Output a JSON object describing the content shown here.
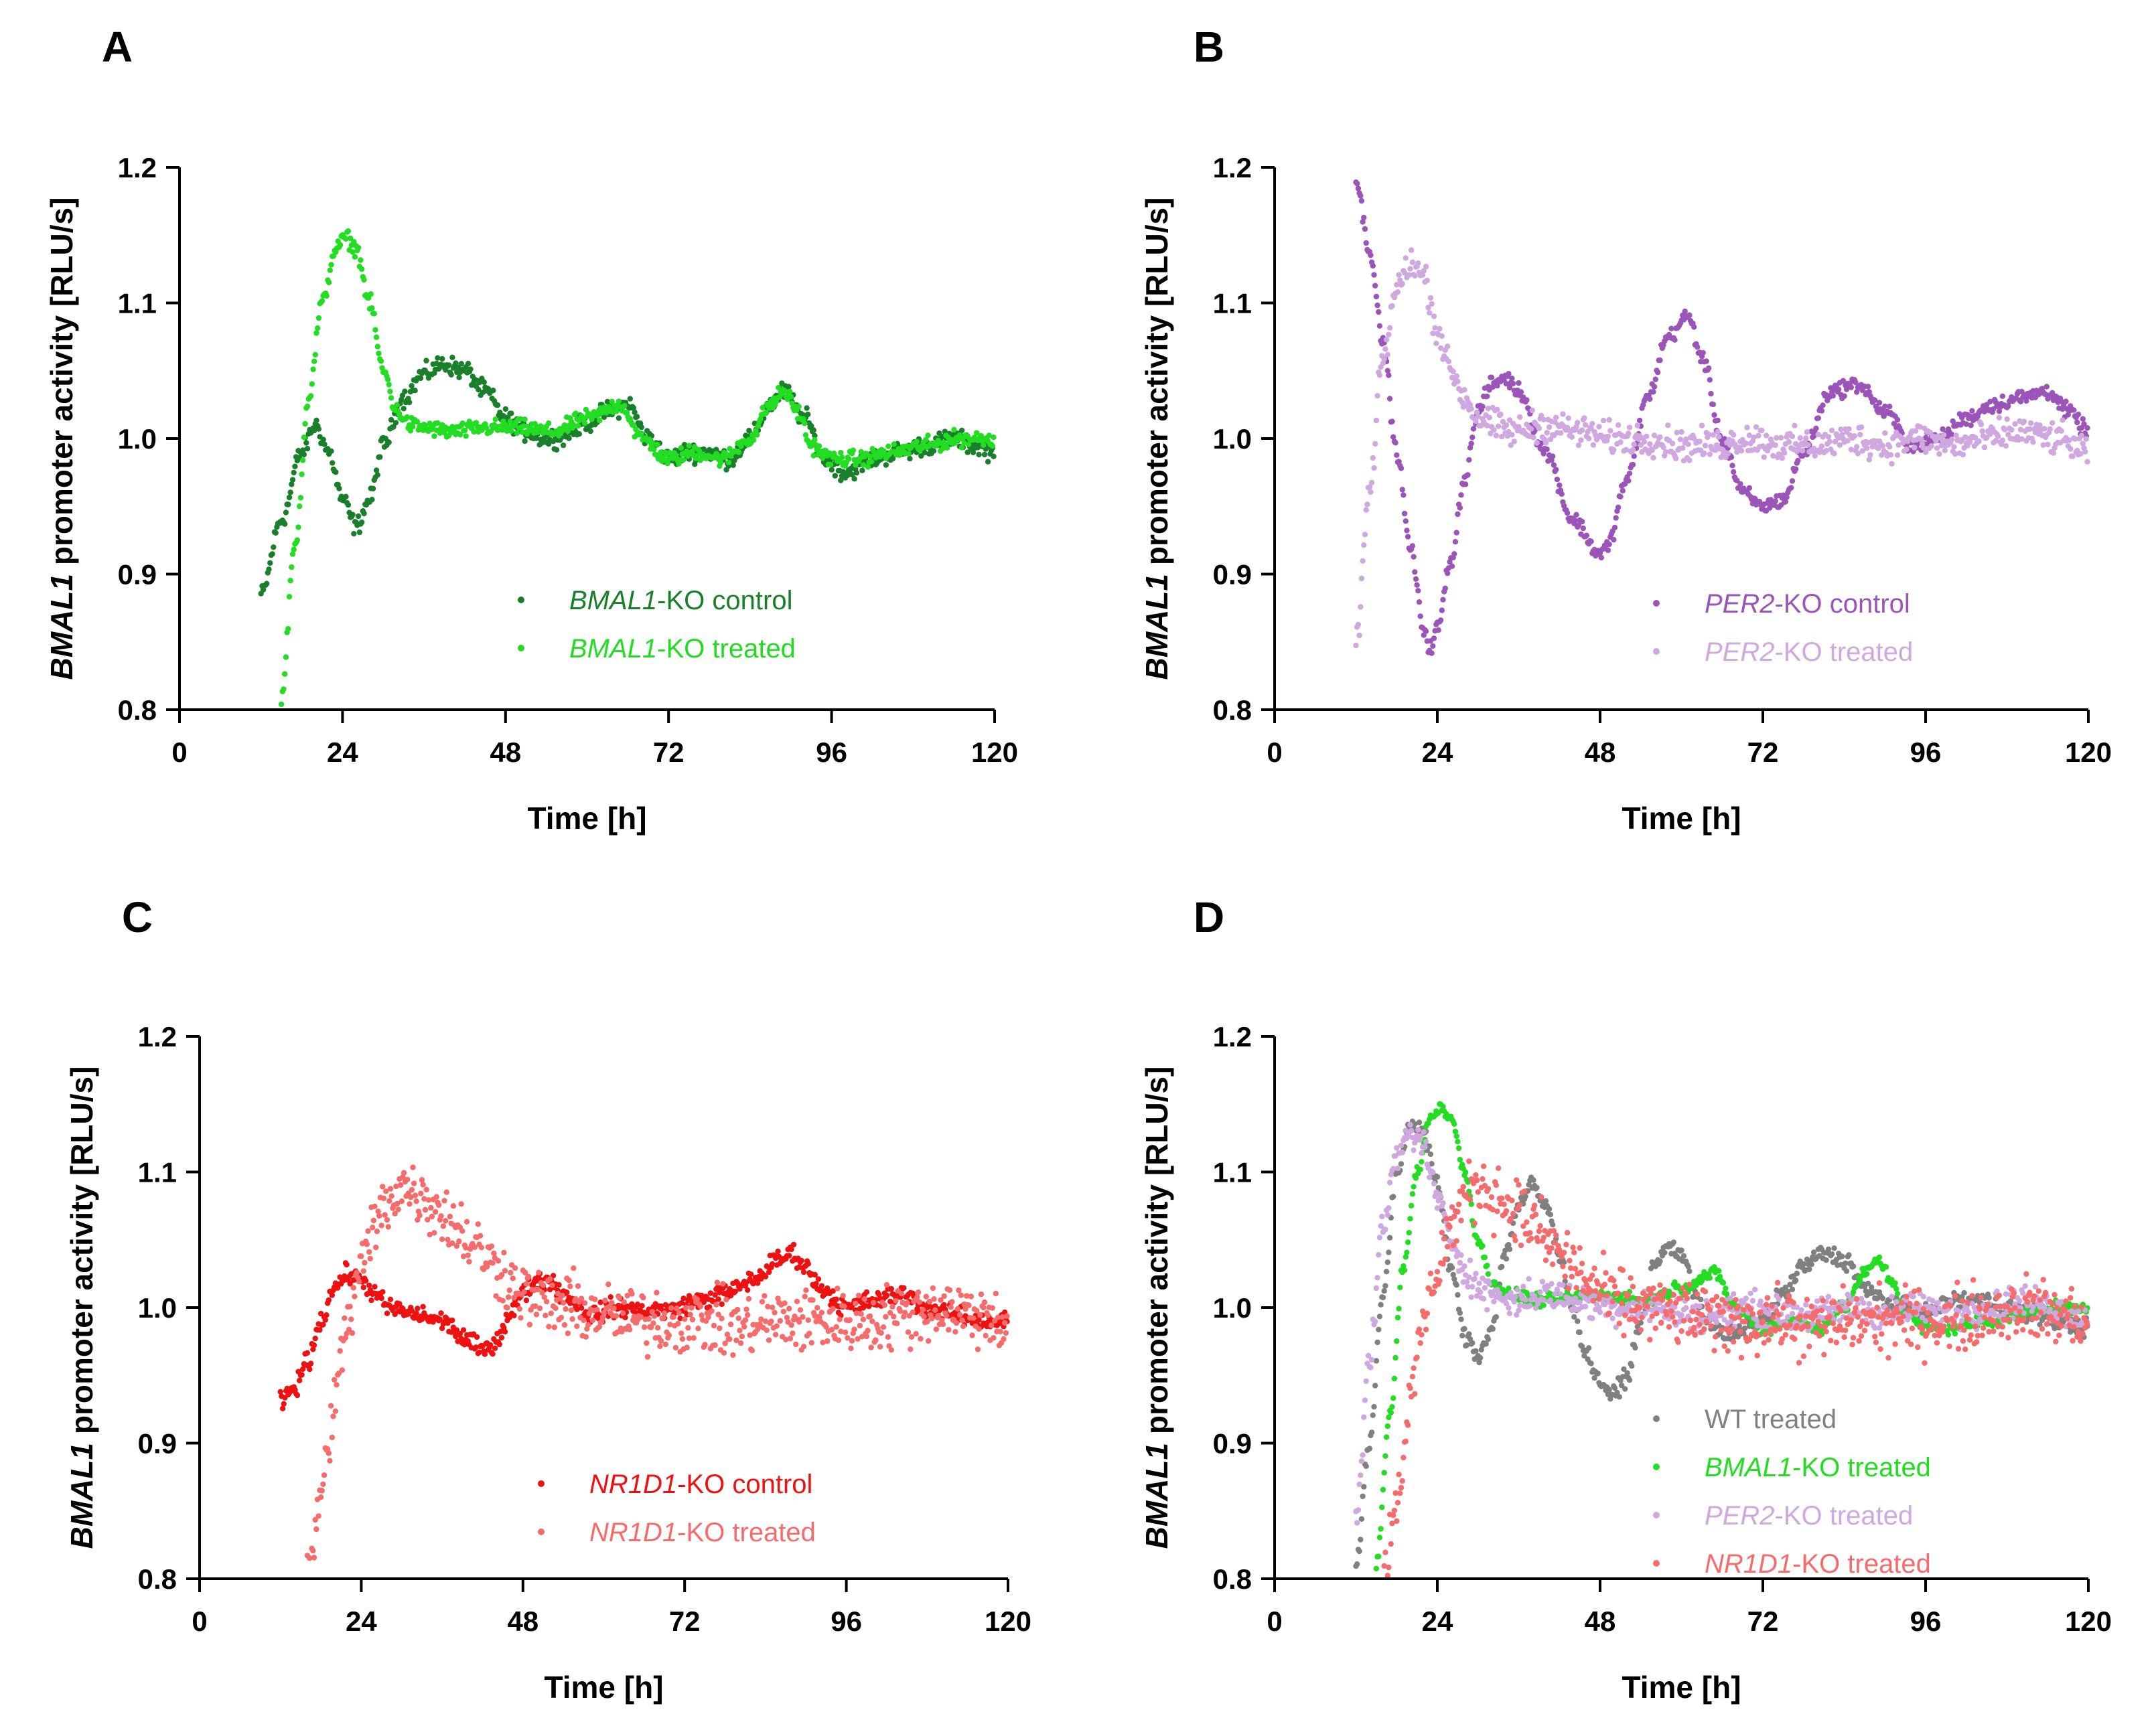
{
  "figure": {
    "ylabel_gene": "BMAL1",
    "ylabel_rest": " promoter activity [RLU/s]",
    "xlabel": "Time [h]",
    "colors": {
      "bmal1_control": "#1a7f2a",
      "bmal1_treated": "#22dd22",
      "per2_control": "#9b55b8",
      "per2_treated": "#cfa8e0",
      "nr1d1_control": "#ee1111",
      "nr1d1_treated": "#f66b6b",
      "wt_treated": "#808080"
    }
  },
  "chart_data": [
    {
      "panel": "A",
      "type": "scatter",
      "xlabel": "Time [h]",
      "ylabel": "BMAL1 promoter activity [RLU/s]",
      "xlim": [
        0,
        120
      ],
      "ylim": [
        0.8,
        1.2
      ],
      "xticks": [
        "0",
        "24",
        "48",
        "72",
        "96",
        "120"
      ],
      "yticks": [
        "0.8",
        "0.9",
        "1.0",
        "1.1",
        "1.2"
      ],
      "series": [
        {
          "name": "BMAL1-KO control",
          "gene": "BMAL1",
          "suffix": "-KO control",
          "color": "#1a7f2a",
          "noise": 0.006,
          "x": [
            12,
            15,
            18,
            20,
            22,
            24,
            26,
            28,
            30,
            33,
            36,
            39,
            42,
            45,
            48,
            51,
            54,
            57,
            60,
            63,
            66,
            69,
            72,
            75,
            78,
            81,
            84,
            87,
            89,
            92,
            95,
            98,
            102,
            106,
            110,
            114,
            117,
            120
          ],
          "y": [
            0.885,
            0.94,
            0.99,
            1.01,
            0.99,
            0.955,
            0.935,
            0.955,
            0.995,
            1.03,
            1.048,
            1.055,
            1.05,
            1.035,
            1.015,
            1.005,
            1.0,
            1.003,
            1.012,
            1.02,
            1.025,
            1.0,
            0.985,
            0.99,
            0.99,
            0.985,
            1.0,
            1.025,
            1.035,
            1.015,
            0.985,
            0.975,
            0.985,
            0.99,
            0.995,
            1.0,
            0.995,
            0.99
          ]
        },
        {
          "name": "BMAL1-KO treated",
          "gene": "BMAL1",
          "suffix": "-KO treated",
          "color": "#22dd22",
          "noise": 0.005,
          "x": [
            15,
            17,
            19,
            21,
            23,
            24.5,
            26,
            28,
            30,
            32,
            34,
            36,
            40,
            45,
            50,
            55,
            60,
            65,
            68,
            72,
            76,
            80,
            84,
            87,
            89,
            91,
            93,
            96,
            100,
            105,
            110,
            115,
            120
          ],
          "y": [
            0.81,
            0.92,
            1.03,
            1.1,
            1.14,
            1.148,
            1.14,
            1.1,
            1.05,
            1.02,
            1.01,
            1.008,
            1.005,
            1.008,
            1.008,
            1.005,
            1.015,
            1.025,
            1.0,
            0.985,
            0.99,
            0.985,
            1.0,
            1.025,
            1.035,
            1.02,
            0.995,
            0.985,
            0.985,
            0.99,
            0.995,
            1.0,
            1.0
          ]
        }
      ]
    },
    {
      "panel": "B",
      "type": "scatter",
      "xlabel": "Time [h]",
      "ylabel": "BMAL1 promoter activity [RLU/s]",
      "xlim": [
        0,
        120
      ],
      "ylim": [
        0.8,
        1.2
      ],
      "xticks": [
        "0",
        "24",
        "48",
        "72",
        "96",
        "120"
      ],
      "yticks": [
        "0.8",
        "0.9",
        "1.0",
        "1.1",
        "1.2"
      ],
      "series": [
        {
          "name": "PER2-KO control",
          "gene": "PER2",
          "suffix": "-KO control",
          "color": "#9b55b8",
          "noise": 0.005,
          "x": [
            12,
            14,
            16,
            18,
            20,
            22,
            23,
            24,
            26,
            28,
            30,
            32,
            34,
            36,
            40,
            44,
            48,
            49,
            52,
            55,
            58,
            61,
            63,
            66,
            69,
            72,
            75,
            78,
            82,
            86,
            90,
            94,
            98,
            102,
            106,
            110,
            114,
            117,
            120
          ],
          "y": [
            1.19,
            1.14,
            1.07,
            0.99,
            0.92,
            0.86,
            0.845,
            0.86,
            0.91,
            0.97,
            1.02,
            1.04,
            1.045,
            1.035,
            0.99,
            0.94,
            0.915,
            0.92,
            0.97,
            1.03,
            1.075,
            1.09,
            1.06,
            1.0,
            0.96,
            0.95,
            0.955,
            0.99,
            1.035,
            1.04,
            1.02,
            0.995,
            1.0,
            1.015,
            1.025,
            1.03,
            1.035,
            1.02,
            1.005
          ]
        },
        {
          "name": "PER2-KO treated",
          "gene": "PER2",
          "suffix": "-KO treated",
          "color": "#cfa8e0",
          "noise": 0.01,
          "x": [
            12,
            14,
            16,
            18,
            20,
            22,
            24,
            26,
            28,
            30,
            32,
            35,
            40,
            45,
            50,
            55,
            60,
            65,
            70,
            75,
            80,
            85,
            90,
            95,
            100,
            105,
            110,
            115,
            120
          ],
          "y": [
            0.85,
            0.96,
            1.06,
            1.11,
            1.13,
            1.12,
            1.08,
            1.05,
            1.03,
            1.015,
            1.01,
            1.005,
            1.01,
            1.005,
            1.0,
            1.0,
            0.995,
            0.995,
            1.0,
            0.995,
            0.995,
            1.0,
            0.995,
            1.0,
            0.995,
            1.0,
            1.005,
            1.0,
            0.99
          ]
        }
      ]
    },
    {
      "panel": "C",
      "type": "scatter",
      "xlabel": "Time [h]",
      "ylabel": "BMAL1 promoter activity [RLU/s]",
      "xlim": [
        0,
        120
      ],
      "ylim": [
        0.8,
        1.2
      ],
      "xticks": [
        "0",
        "24",
        "48",
        "72",
        "96",
        "120"
      ],
      "yticks": [
        "0.8",
        "0.9",
        "1.0",
        "1.1",
        "1.2"
      ],
      "series": [
        {
          "name": "NR1D1-KO control",
          "gene": "NR1D1",
          "suffix": "-KO control",
          "color": "#ee1111",
          "noise": 0.006,
          "x": [
            12,
            14,
            16,
            18,
            20,
            22,
            24,
            26,
            28,
            32,
            36,
            40,
            42,
            44,
            46,
            48,
            50,
            52,
            54,
            58,
            62,
            66,
            70,
            74,
            78,
            82,
            86,
            88,
            90,
            92,
            96,
            100,
            104,
            108,
            112,
            116,
            120
          ],
          "y": [
            0.93,
            0.94,
            0.96,
            0.99,
            1.015,
            1.025,
            1.02,
            1.01,
            1.0,
            0.995,
            0.99,
            0.975,
            0.968,
            0.975,
            0.995,
            1.01,
            1.02,
            1.02,
            1.01,
            0.995,
            1.0,
            0.998,
            0.998,
            1.005,
            1.01,
            1.02,
            1.035,
            1.04,
            1.03,
            1.015,
            1.0,
            1.005,
            1.01,
            1.0,
            0.995,
            0.99,
            0.99
          ]
        },
        {
          "name": "NR1D1-KO treated",
          "gene": "NR1D1",
          "suffix": "-KO treated",
          "color": "#f66b6b",
          "noise": 0.02,
          "x": [
            16,
            18,
            20,
            22,
            24,
            26,
            28,
            30,
            32,
            35,
            38,
            41,
            44,
            47,
            50,
            55,
            60,
            65,
            70,
            75,
            80,
            85,
            90,
            95,
            100,
            105,
            110,
            115,
            120
          ],
          "y": [
            0.8,
            0.86,
            0.93,
            0.99,
            1.03,
            1.06,
            1.08,
            1.09,
            1.085,
            1.075,
            1.06,
            1.045,
            1.03,
            1.015,
            1.005,
            1.0,
            0.995,
            0.99,
            0.99,
            0.99,
            0.985,
            0.99,
            0.99,
            0.99,
            0.99,
            0.995,
            1.0,
            0.995,
            0.99
          ]
        }
      ]
    },
    {
      "panel": "D",
      "type": "scatter",
      "xlabel": "Time [h]",
      "ylabel": "BMAL1 promoter activity [RLU/s]",
      "xlim": [
        0,
        120
      ],
      "ylim": [
        0.8,
        1.2
      ],
      "xticks": [
        "0",
        "24",
        "48",
        "72",
        "96",
        "120"
      ],
      "yticks": [
        "0.8",
        "0.9",
        "1.0",
        "1.1",
        "1.2"
      ],
      "series": [
        {
          "name": "WT treated",
          "gene": "",
          "suffix": "WT treated",
          "color": "#808080",
          "noise": 0.006,
          "x": [
            12,
            14,
            16,
            18,
            20,
            22,
            24,
            26,
            28,
            30,
            32,
            34,
            36,
            38,
            40,
            42,
            44,
            46,
            48,
            50,
            52,
            54,
            56,
            58,
            60,
            62,
            64,
            66,
            68,
            70,
            72,
            75,
            78,
            81,
            84,
            88,
            92,
            96,
            100,
            104,
            108,
            112,
            116,
            120
          ],
          "y": [
            0.81,
            0.9,
            1.01,
            1.1,
            1.135,
            1.13,
            1.09,
            1.03,
            0.98,
            0.965,
            0.985,
            1.04,
            1.075,
            1.09,
            1.075,
            1.04,
            1.0,
            0.965,
            0.945,
            0.935,
            0.95,
            0.99,
            1.03,
            1.045,
            1.04,
            1.01,
            0.99,
            0.98,
            0.98,
            0.985,
            0.99,
            1.01,
            1.03,
            1.04,
            1.035,
            1.01,
            1.0,
            0.995,
            1.005,
            1.005,
            1.0,
            0.995,
            0.99,
            0.985
          ]
        },
        {
          "name": "BMAL1-KO treated",
          "gene": "BMAL1",
          "suffix": "-KO treated",
          "color": "#22dd22",
          "noise": 0.004,
          "x": [
            15,
            17,
            19,
            21,
            23,
            24.5,
            26,
            28,
            30,
            32,
            34,
            36,
            40,
            45,
            50,
            55,
            60,
            65,
            68,
            72,
            76,
            80,
            84,
            87,
            89,
            91,
            93,
            96,
            100,
            105,
            110,
            115,
            120
          ],
          "y": [
            0.81,
            0.92,
            1.03,
            1.1,
            1.14,
            1.148,
            1.14,
            1.1,
            1.05,
            1.02,
            1.01,
            1.008,
            1.005,
            1.008,
            1.008,
            1.005,
            1.015,
            1.025,
            1.0,
            0.985,
            0.99,
            0.985,
            1.0,
            1.025,
            1.035,
            1.02,
            0.995,
            0.985,
            0.985,
            0.99,
            0.995,
            1.0,
            1.0
          ]
        },
        {
          "name": "PER2-KO treated",
          "gene": "PER2",
          "suffix": "-KO treated",
          "color": "#cfa8e0",
          "noise": 0.01,
          "x": [
            12,
            14,
            16,
            18,
            20,
            22,
            24,
            26,
            28,
            30,
            32,
            35,
            40,
            45,
            50,
            55,
            60,
            65,
            70,
            75,
            80,
            85,
            90,
            95,
            100,
            105,
            110,
            115,
            120
          ],
          "y": [
            0.85,
            0.96,
            1.06,
            1.11,
            1.13,
            1.12,
            1.08,
            1.05,
            1.03,
            1.015,
            1.01,
            1.005,
            1.01,
            1.005,
            1.0,
            1.0,
            0.995,
            0.995,
            1.0,
            0.995,
            0.995,
            1.0,
            0.995,
            1.0,
            0.995,
            1.0,
            1.005,
            1.0,
            0.99
          ]
        },
        {
          "name": "NR1D1-KO treated",
          "gene": "NR1D1",
          "suffix": "-KO treated",
          "color": "#f66b6b",
          "noise": 0.02,
          "x": [
            16,
            18,
            20,
            22,
            24,
            26,
            28,
            30,
            32,
            35,
            38,
            41,
            44,
            47,
            50,
            55,
            60,
            65,
            70,
            75,
            80,
            85,
            90,
            95,
            100,
            105,
            110,
            115,
            120
          ],
          "y": [
            0.8,
            0.86,
            0.93,
            0.99,
            1.03,
            1.06,
            1.08,
            1.09,
            1.085,
            1.075,
            1.06,
            1.045,
            1.03,
            1.015,
            1.005,
            1.0,
            0.995,
            0.99,
            0.99,
            0.99,
            0.985,
            0.99,
            0.99,
            0.99,
            0.99,
            0.995,
            1.0,
            0.995,
            0.99
          ]
        }
      ]
    }
  ]
}
